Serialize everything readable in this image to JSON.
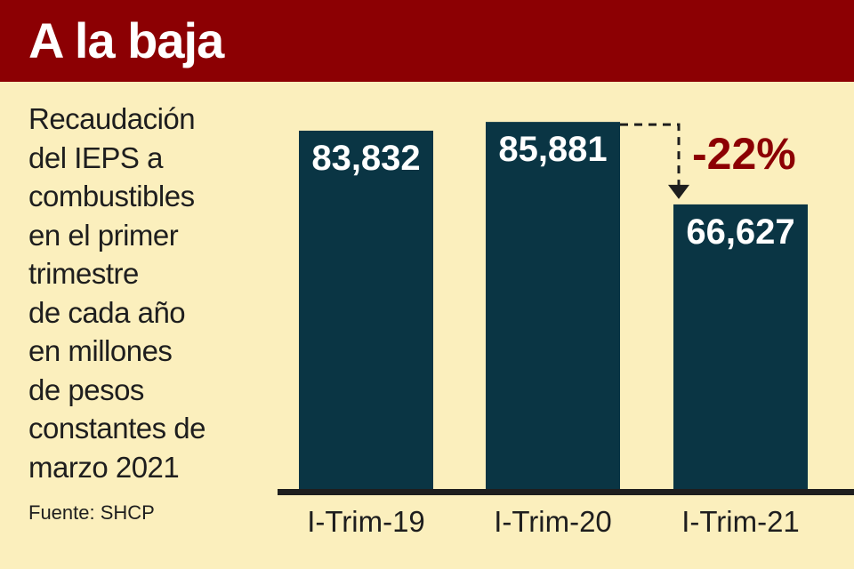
{
  "header": {
    "title": "A la baja"
  },
  "description_lines": [
    "Recaudación",
    "del IEPS a",
    "combustibles",
    "en el primer",
    "trimestre",
    "de cada año",
    "en millones",
    "de pesos",
    "constantes de",
    "marzo 2021"
  ],
  "source": "Fuente: SHCP",
  "colors": {
    "header": "#8c0003",
    "background": "#fbefbd",
    "bar": "#0a3544",
    "change": "#8c0003"
  },
  "chart_data": {
    "type": "bar",
    "categories": [
      "I-Trim-19",
      "I-Trim-20",
      "I-Trim-21"
    ],
    "values": [
      83832,
      85881,
      66627
    ],
    "value_labels": [
      "83,832",
      "85,881",
      "66,627"
    ],
    "annotation": {
      "from_category": "I-Trim-20",
      "to_category": "I-Trim-21",
      "text": "-22%"
    },
    "ylim": [
      0,
      90000
    ],
    "grid": false,
    "legend": "none"
  }
}
